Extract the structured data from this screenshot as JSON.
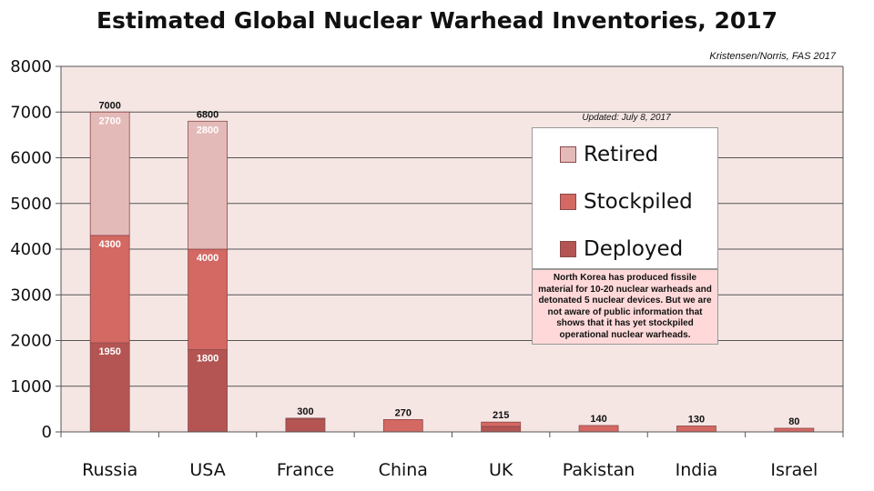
{
  "chart_data": {
    "type": "bar",
    "stacked": true,
    "title": "Estimated Global Nuclear Warhead Inventories, 2017",
    "source": "Kristensen/Norris, FAS 2017",
    "updated": "Updated: July 8, 2017",
    "ylim": [
      0,
      8000
    ],
    "yticks": [
      0,
      1000,
      2000,
      3000,
      4000,
      5000,
      6000,
      7000,
      8000
    ],
    "grid": true,
    "legend_position": "right",
    "categories": [
      "Russia",
      "USA",
      "France",
      "China",
      "UK",
      "Pakistan",
      "India",
      "Israel"
    ],
    "totals": [
      7000,
      6800,
      300,
      270,
      215,
      140,
      130,
      80
    ],
    "series": [
      {
        "name": "Deployed",
        "values": [
          1950,
          1800,
          280,
          0,
          120,
          0,
          0,
          0
        ],
        "color": "#b45553",
        "labels": [
          "1950",
          "1800",
          "",
          "",
          "",
          "",
          "",
          ""
        ]
      },
      {
        "name": "Stockpiled",
        "values": [
          2350,
          2200,
          20,
          270,
          95,
          140,
          130,
          80
        ],
        "color": "#d46862",
        "labels": [
          "4300",
          "4000",
          "",
          "",
          "",
          "",
          "",
          ""
        ]
      },
      {
        "name": "Retired",
        "values": [
          2700,
          2800,
          0,
          0,
          0,
          0,
          0,
          0
        ],
        "color": "#e4bab8",
        "labels": [
          "2700",
          "2800",
          "",
          "",
          "",
          "",
          "",
          ""
        ]
      }
    ],
    "legend_order": [
      "Retired",
      "Stockpiled",
      "Deployed"
    ],
    "annotation": "North Korea has produced fissile material for 10-20 nuclear warheads and detonated 5 nuclear devices. But we are not aware of public information that shows that it has yet stockpiled operational nuclear warheads.",
    "colors": {
      "plot_background": "#f5e6e4",
      "gridline": "#555555",
      "annotation_background": "#ffd9d9"
    }
  }
}
